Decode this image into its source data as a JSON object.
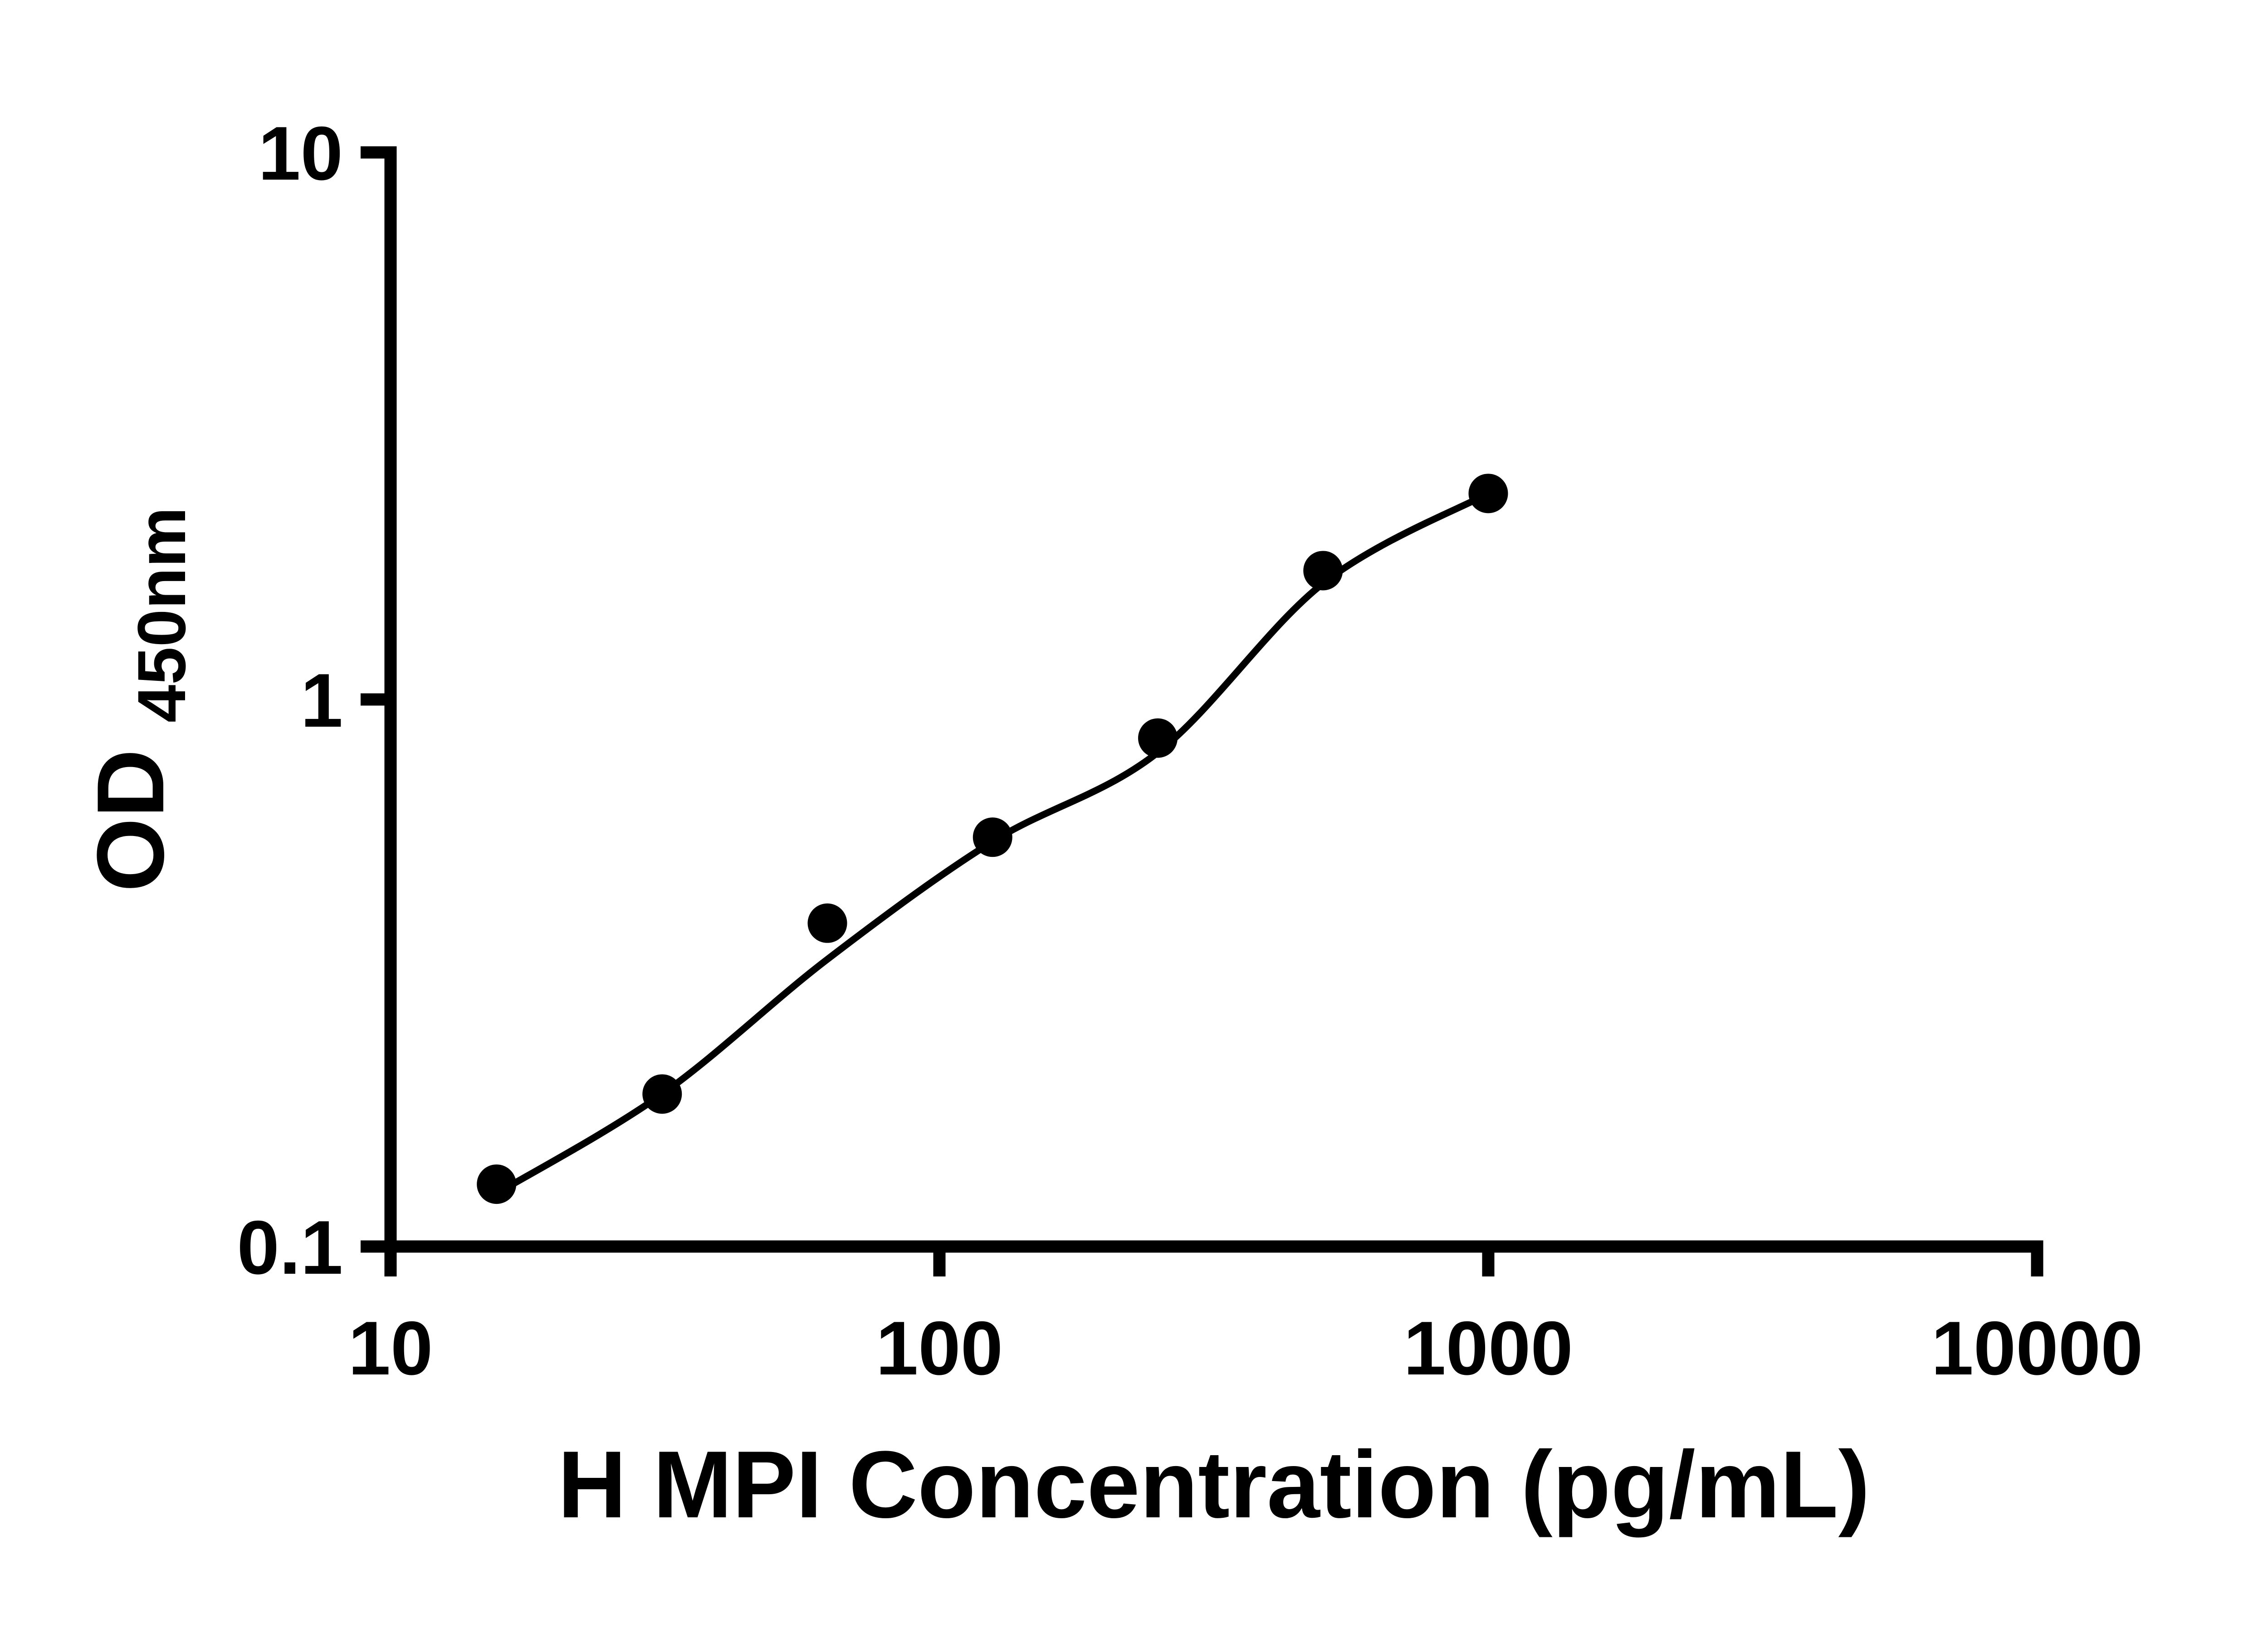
{
  "chart_data": {
    "type": "scatter",
    "title": "",
    "xlabel": "H MPI Concentration (pg/mL)",
    "ylabel": "OD450nm",
    "ylabel_main": "OD",
    "ylabel_sub": "450nm",
    "x_scale": "log",
    "y_scale": "log",
    "xlim": [
      10,
      10000
    ],
    "ylim": [
      0.1,
      10
    ],
    "x_tick_values": [
      10,
      100,
      1000,
      10000
    ],
    "x_tick_labels": [
      "10",
      "100",
      "1000",
      "10000"
    ],
    "y_tick_values": [
      0.1,
      1,
      10
    ],
    "y_tick_labels": [
      "0.1",
      "1",
      "10"
    ],
    "grid": false,
    "legend": false,
    "series": [
      {
        "x": [
          15.6,
          31.25,
          62.5,
          125,
          250,
          500,
          1000
        ],
        "y": [
          0.13,
          0.19,
          0.39,
          0.56,
          0.85,
          1.72,
          2.38
        ]
      }
    ],
    "fit_curve": {
      "x": [
        15.6,
        31.25,
        62.5,
        125,
        250,
        500,
        1000
      ],
      "y": [
        0.125,
        0.19,
        0.335,
        0.55,
        0.8,
        1.63,
        2.38
      ]
    },
    "colors": {
      "points": "#000000",
      "line": "#000000",
      "axis": "#000000",
      "background": "#ffffff"
    }
  }
}
